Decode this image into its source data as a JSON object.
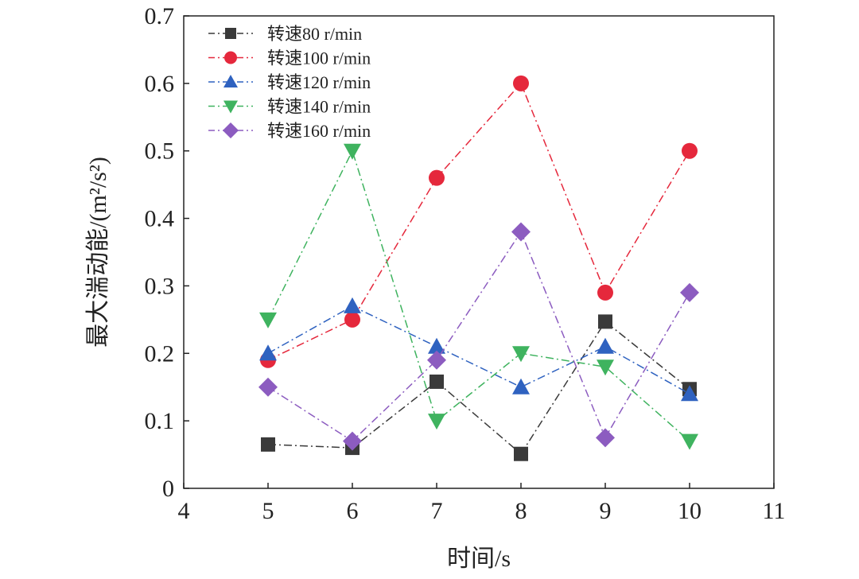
{
  "chart_data": {
    "type": "line",
    "xlabel": "时间/s",
    "ylabel": "最大湍动能/(m²/s²)",
    "xlim": [
      4,
      11
    ],
    "ylim": [
      0,
      0.7
    ],
    "xticks": [
      "4",
      "5",
      "6",
      "7",
      "8",
      "9",
      "10",
      "11"
    ],
    "yticks": [
      "0",
      "0.1",
      "0.2",
      "0.3",
      "0.4",
      "0.5",
      "0.6",
      "0.7"
    ],
    "grid": false,
    "legend_position": "top-left",
    "x": [
      5,
      6,
      7,
      8,
      9,
      10
    ],
    "series": [
      {
        "name": "转速80 r/min",
        "color": "#3a3a3a",
        "marker": "square",
        "values": [
          0.065,
          0.06,
          0.158,
          0.051,
          0.247,
          0.147
        ]
      },
      {
        "name": "转速100 r/min",
        "color": "#e5283c",
        "marker": "circle",
        "values": [
          0.19,
          0.25,
          0.46,
          0.6,
          0.29,
          0.5
        ]
      },
      {
        "name": "转速120 r/min",
        "color": "#2f62c0",
        "marker": "triangle-up",
        "values": [
          0.2,
          0.27,
          0.21,
          0.15,
          0.21,
          0.14
        ]
      },
      {
        "name": "转速140 r/min",
        "color": "#3fb35f",
        "marker": "triangle-down",
        "values": [
          0.25,
          0.5,
          0.1,
          0.2,
          0.18,
          0.07
        ]
      },
      {
        "name": "转速160 r/min",
        "color": "#8c5cc0",
        "marker": "diamond",
        "values": [
          0.15,
          0.07,
          0.19,
          0.38,
          0.075,
          0.29
        ]
      }
    ]
  }
}
